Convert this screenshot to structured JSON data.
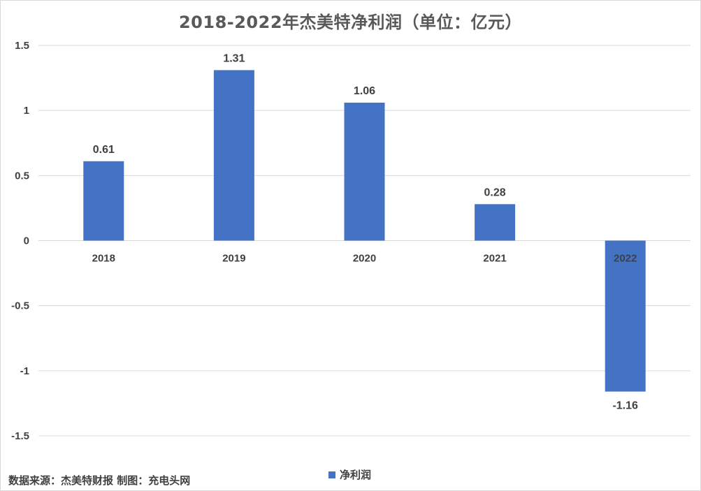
{
  "chart_data": {
    "type": "bar",
    "title": "2018-2022年杰美特净利润（单位：亿元）",
    "categories": [
      "2018",
      "2019",
      "2020",
      "2021",
      "2022"
    ],
    "series": [
      {
        "name": "净利润",
        "values": [
          0.61,
          1.31,
          1.06,
          0.28,
          -1.16
        ]
      }
    ],
    "value_labels": [
      "0.61",
      "1.31",
      "1.06",
      "0.28",
      "-1.16"
    ],
    "ylim": [
      -1.5,
      1.5
    ],
    "yticks": [
      1.5,
      1,
      0.5,
      0,
      -0.5,
      -1,
      -1.5
    ],
    "ytick_labels": [
      "1.5",
      "1",
      "0.5",
      "0",
      "-0.5",
      "-1",
      "-1.5"
    ],
    "xlabel": "",
    "ylabel": "",
    "grid": true,
    "legend_position": "bottom",
    "bar_color": "#4472c4"
  },
  "footer": {
    "source": "数据来源：杰美特财报  制图：充电头网"
  }
}
